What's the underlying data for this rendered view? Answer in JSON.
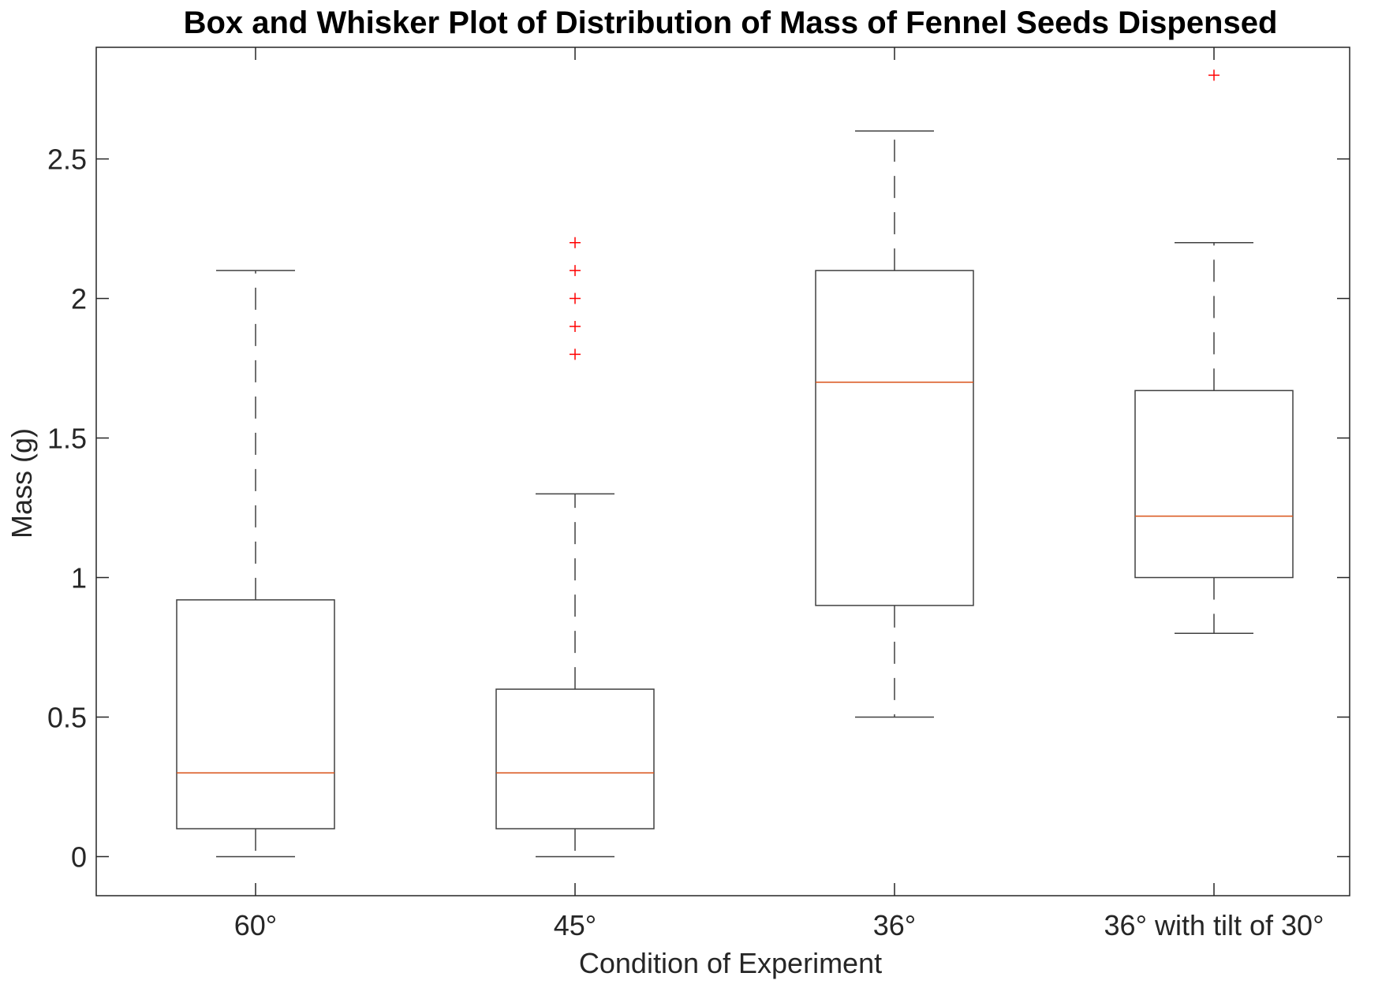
{
  "chart_data": {
    "type": "box",
    "title": "Box and Whisker Plot of Distribution of Mass of Fennel Seeds Dispensed",
    "xlabel": "Condition of Experiment",
    "ylabel": "Mass (g)",
    "ylim": [
      -0.14,
      2.9
    ],
    "yticks": [
      0,
      0.5,
      1,
      1.5,
      2,
      2.5
    ],
    "ytick_labels": [
      "0",
      "0.5",
      "1",
      "1.5",
      "2",
      "2.5"
    ],
    "categories": [
      "60°",
      "45°",
      "36°",
      "36° with tilt of 30°"
    ],
    "boxes": [
      {
        "whisker_low": 0,
        "q1": 0.1,
        "median": 0.3,
        "q3": 0.92,
        "whisker_high": 2.1,
        "outliers": []
      },
      {
        "whisker_low": 0,
        "q1": 0.1,
        "median": 0.3,
        "q3": 0.6,
        "whisker_high": 1.3,
        "outliers": [
          1.8,
          1.9,
          2.0,
          2.1,
          2.2
        ]
      },
      {
        "whisker_low": 0.5,
        "q1": 0.9,
        "median": 1.7,
        "q3": 2.1,
        "whisker_high": 2.6,
        "outliers": []
      },
      {
        "whisker_low": 0.8,
        "q1": 1.0,
        "median": 1.22,
        "q3": 1.67,
        "whisker_high": 2.2,
        "outliers": [
          2.8
        ]
      }
    ],
    "grid": false,
    "colors": {
      "box": "#404040",
      "median": "#d95319",
      "outlier": "#ff0000",
      "axes": "#262626"
    }
  }
}
